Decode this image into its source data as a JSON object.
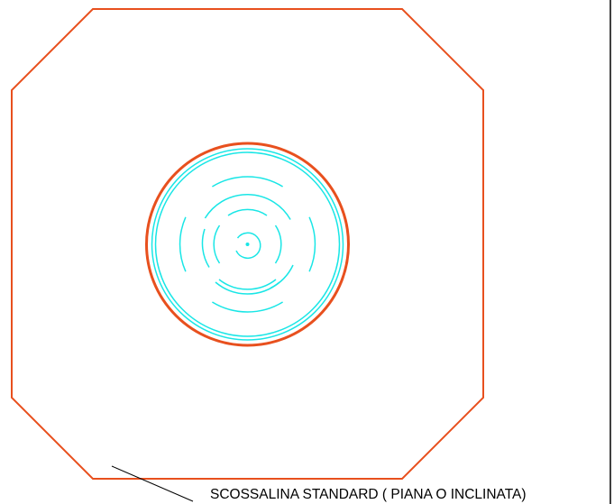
{
  "drawing": {
    "label": "SCOSSALINA STANDARD  ( PIANA O INCLINATA)",
    "colors": {
      "flashing_outline": "#e8501e",
      "pipe_outline": "#e8501e",
      "pipe_rings": "#19e6e6",
      "leader_line": "#000000",
      "frame_line": "#000000",
      "background": "#ffffff"
    }
  }
}
